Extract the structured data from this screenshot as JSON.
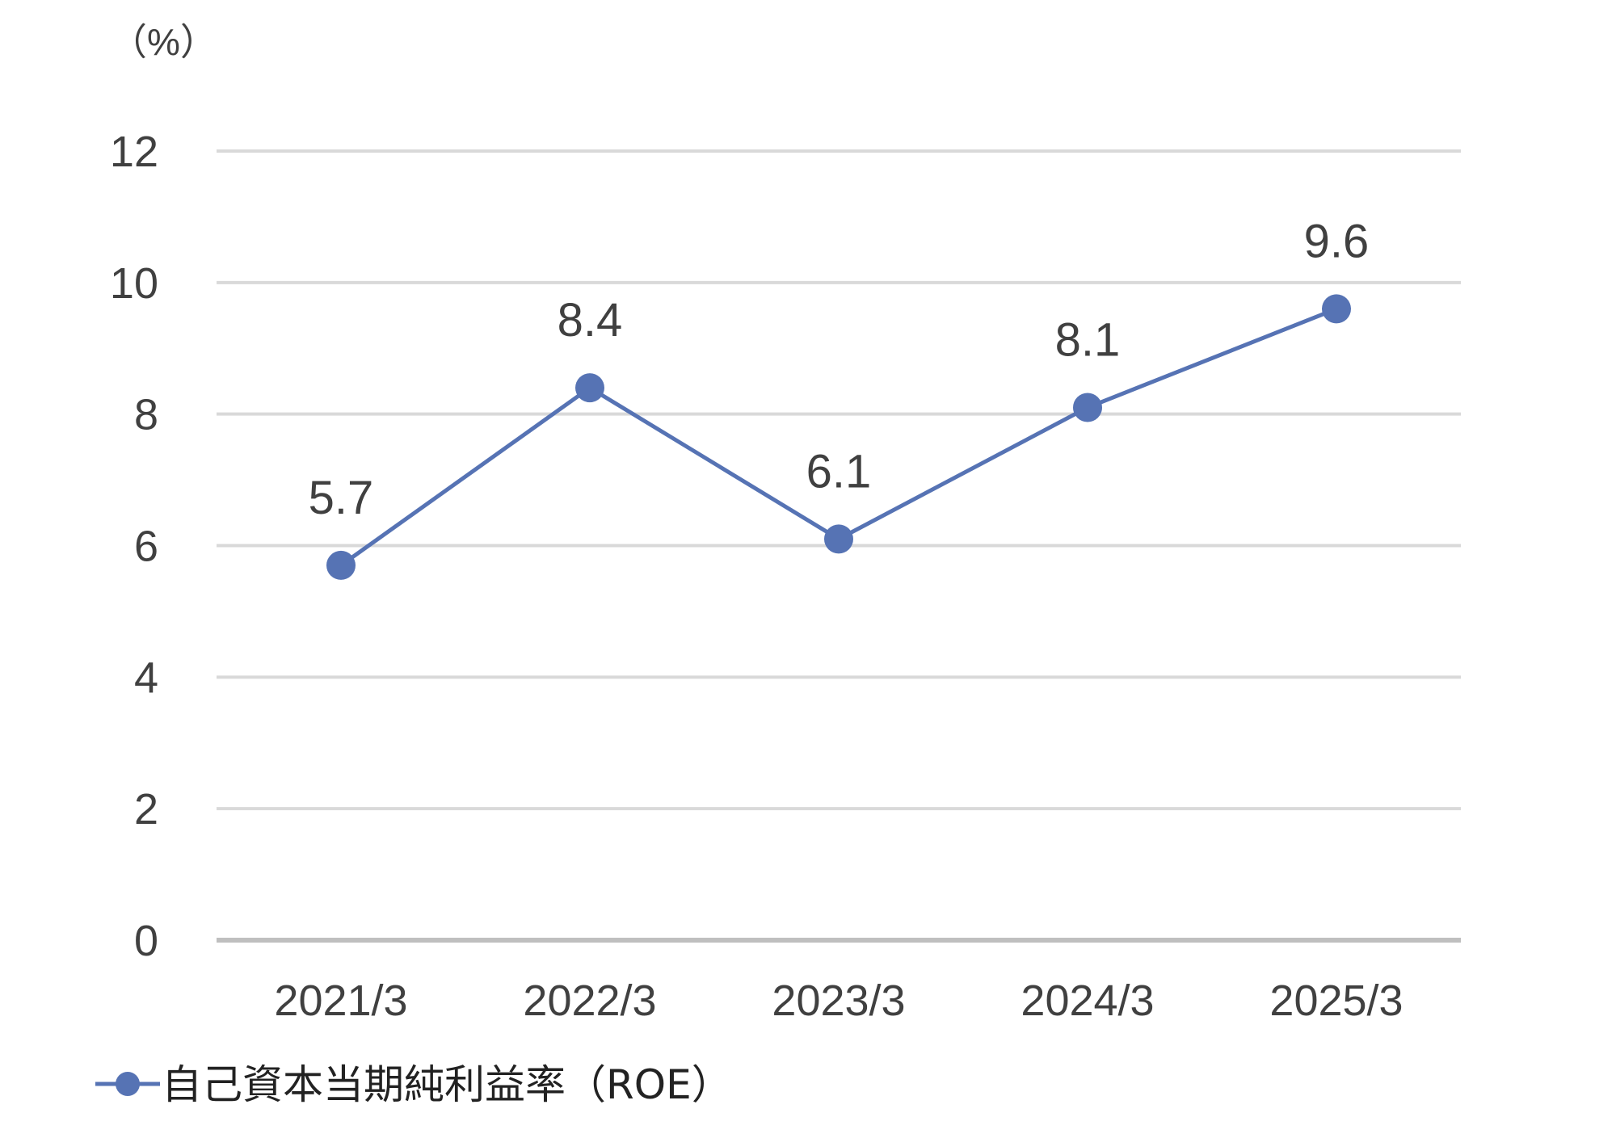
{
  "chart_data": {
    "type": "line",
    "unit_label": "（%）",
    "categories": [
      "2021/3",
      "2022/3",
      "2023/3",
      "2024/3",
      "2025/3"
    ],
    "series": [
      {
        "name": "自己資本当期純利益率（ROE）",
        "values": [
          5.7,
          8.4,
          6.1,
          8.1,
          9.6
        ],
        "data_labels": [
          "5.7",
          "8.4",
          "6.1",
          "8.1",
          "9.6"
        ]
      }
    ],
    "y_ticks": [
      "0",
      "2",
      "4",
      "6",
      "8",
      "10",
      "12"
    ],
    "ylim": [
      0,
      12
    ],
    "grid": true,
    "legend_position": "bottom-left",
    "colors": {
      "series": "#5673B4",
      "grid": "#D9D9D9",
      "axis": "#BFBFBF",
      "text": "#404040"
    }
  }
}
